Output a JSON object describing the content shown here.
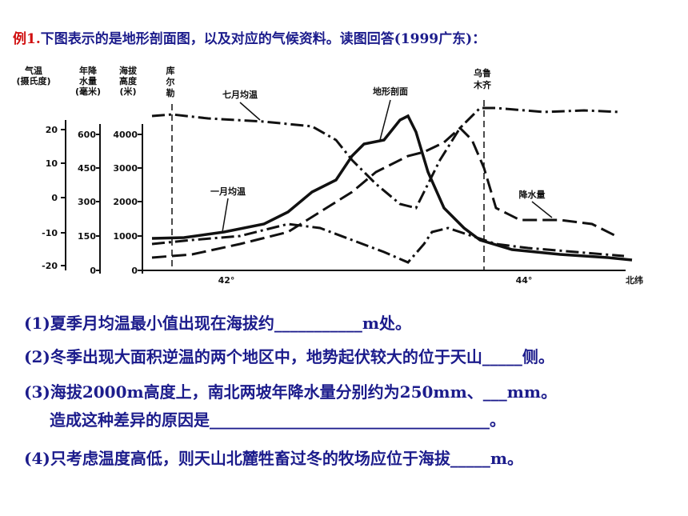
{
  "header": {
    "label": "例1.",
    "text": "下图表示的是地形剖面图，以及对应的气候资料。读图回答(1999广东)："
  },
  "figure": {
    "axis_titles": {
      "temperature": [
        "气温",
        "(摄氏度)"
      ],
      "precipitation": [
        "年降",
        "水量",
        "(毫米)"
      ],
      "elevation": [
        "海拔",
        "高度",
        "(米)"
      ]
    },
    "temperature_ticks": [
      "20",
      "10",
      "0",
      "-10",
      "-20"
    ],
    "precipitation_ticks": [
      "600",
      "450",
      "300",
      "150",
      "0"
    ],
    "elevation_ticks": [
      "4000",
      "3000",
      "2000",
      "1000",
      "0"
    ],
    "x_ticks": [
      "42°",
      "44°"
    ],
    "x_axis_title": "北纬",
    "places": {
      "korla": [
        "库",
        "尔",
        "勒"
      ],
      "urumqi": [
        "乌鲁",
        "木齐"
      ]
    },
    "curve_labels": {
      "july": "七月均温",
      "terrain": "地形剖面",
      "january": "一月均温",
      "precipitation": "降水量"
    }
  },
  "questions": [
    [
      "(1)夏季月均温最小值出现在海拔约___________m处。"
    ],
    [
      "(2)冬季出现大面积逆温的两个地区中，地势起伏较大的位于天山_____侧。"
    ],
    [
      "(3)海拔2000m高度上，南北两坡年降水量分别约为250mm、___mm。",
      "造成这种差异的原因是___________________________________。"
    ],
    [
      "(4)只考虑温度高低，则天山北麓牲畜过冬的牧场应位于海拔_____m。"
    ]
  ]
}
